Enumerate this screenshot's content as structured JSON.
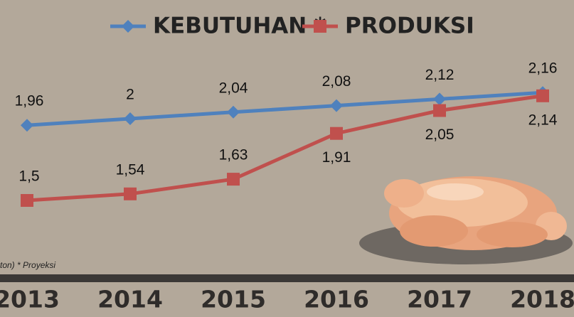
{
  "chart_data": {
    "type": "line",
    "categories": [
      "2013",
      "2014",
      "2015",
      "2016",
      "2017",
      "2018"
    ],
    "series": [
      {
        "name": "KEBUTUHAN *",
        "color": "#4f81bd",
        "marker": "diamond",
        "values": [
          1.96,
          2,
          2.04,
          2.08,
          2.12,
          2.16
        ],
        "value_labels": [
          "1,96",
          "2",
          "2,04",
          "2,08",
          "2,12",
          "2,16"
        ]
      },
      {
        "name": "PRODUKSI",
        "color": "#c0504d",
        "marker": "square",
        "values": [
          1.5,
          1.54,
          1.63,
          1.91,
          2.05,
          2.14
        ],
        "value_labels": [
          "1,5",
          "1,54",
          "1,63",
          "1,91",
          "2,05",
          "2,14"
        ]
      }
    ],
    "note": "ton) * Proyeksi",
    "ylim": [
      1.3,
      2.3
    ],
    "legend": "top"
  }
}
